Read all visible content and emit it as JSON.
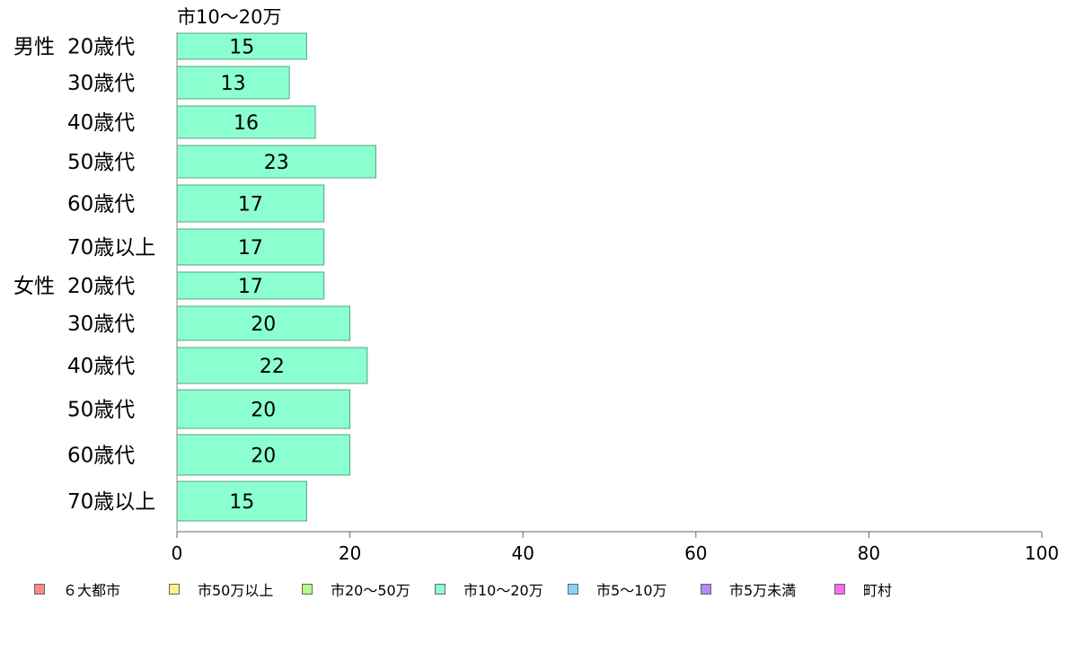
{
  "chart_data": {
    "type": "bar",
    "orientation": "horizontal",
    "title": "市10〜20万",
    "group_labels": [
      "男性",
      "女性"
    ],
    "categories": [
      "20歳代",
      "30歳代",
      "40歳代",
      "50歳代",
      "60歳代",
      "70歳以上",
      "20歳代",
      "30歳代",
      "40歳代",
      "50歳代",
      "60歳代",
      "70歳以上"
    ],
    "category_groups": [
      0,
      0,
      0,
      0,
      0,
      0,
      1,
      1,
      1,
      1,
      1,
      1
    ],
    "values": [
      15,
      13,
      16,
      23,
      17,
      17,
      17,
      20,
      22,
      20,
      20,
      15
    ],
    "data_labels": [
      "15",
      "13",
      "16",
      "23",
      "17",
      "17",
      "17",
      "20",
      "22",
      "20",
      "20",
      "15"
    ],
    "xlim": [
      0,
      100
    ],
    "x_ticks": [
      0,
      20,
      40,
      60,
      80,
      100
    ],
    "x_tick_labels": [
      "0",
      "20",
      "40",
      "60",
      "80",
      "100"
    ],
    "grid": false,
    "bar_color": "#8bffd0",
    "bar_border_color": "#5aa38a",
    "legend_position": "bottom",
    "legend": [
      {
        "label": "６大都市",
        "color": "#f98a8a"
      },
      {
        "label": "市50万以上",
        "color": "#fff08a"
      },
      {
        "label": "市20〜50万",
        "color": "#b0ff8a"
      },
      {
        "label": "市10〜20万",
        "color": "#8bffd0"
      },
      {
        "label": "市5〜10万",
        "color": "#8ad0ff"
      },
      {
        "label": "市5万未満",
        "color": "#b08aff"
      },
      {
        "label": "町村",
        "color": "#ff6af0"
      }
    ]
  }
}
